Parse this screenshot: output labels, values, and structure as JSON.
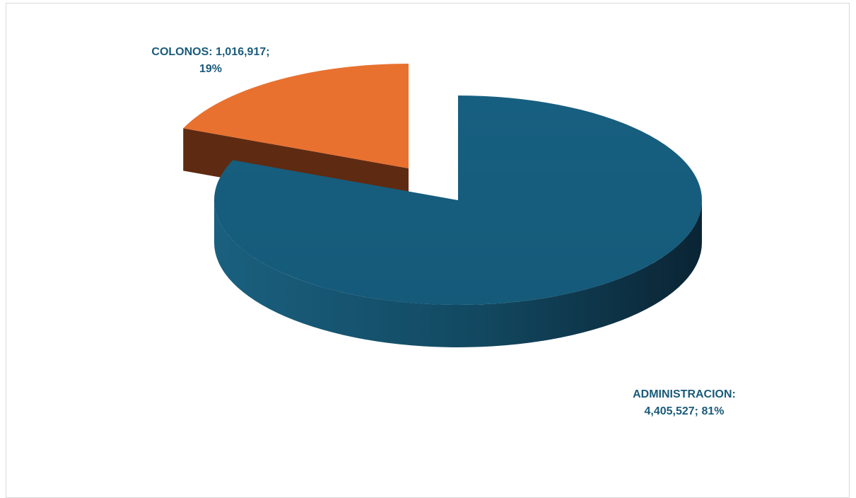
{
  "chart_data": {
    "type": "pie",
    "title": "",
    "three_d": true,
    "exploded": true,
    "legend": "none",
    "categories": [
      "ADMINISTRACION",
      "COLONOS"
    ],
    "values": [
      4405527,
      1016917
    ],
    "percentages": [
      81,
      19
    ],
    "colors": {
      "ADMINISTRACION": "#175f80",
      "COLONOS": "#e87130"
    },
    "data_labels": [
      {
        "category": "ADMINISTRACION",
        "line1": "ADMINISTRACION:",
        "line2": "4,405,527; 81%"
      },
      {
        "category": "COLONOS",
        "line1": "COLONOS: 1,016,917;",
        "line2": "19%"
      }
    ]
  }
}
